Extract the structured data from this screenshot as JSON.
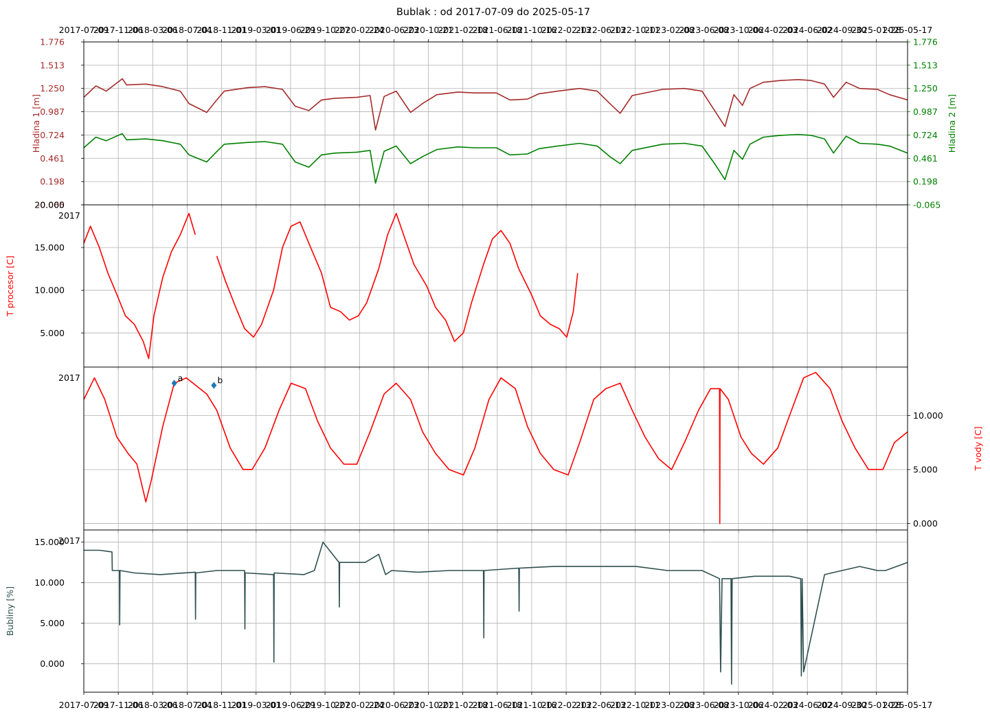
{
  "figure": {
    "title": "Bublak : od 2017-07-09 do 2025-05-17"
  },
  "time_axis": {
    "tick_labels": [
      "2017-07-09",
      "2017-11-06",
      "2018-03-06",
      "2018-07-04",
      "2018-11-01",
      "2019-03-01",
      "2019-06-29",
      "2019-10-27",
      "2020-02-24",
      "2020-06-23",
      "2020-10-21",
      "2021-02-18",
      "2021-06-18",
      "2021-10-16",
      "2022-02-13",
      "2022-06-13",
      "2022-10-11",
      "2023-02-08",
      "2023-06-08",
      "2023-10-06",
      "2024-02-03",
      "2024-06-02",
      "2024-09-30",
      "2025-01-28",
      "2025-05-17"
    ],
    "tick_dates": [
      "2017-07-09",
      "2017-11-06",
      "2018-03-06",
      "2018-07-04",
      "2018-11-01",
      "2019-03-01",
      "2019-06-29",
      "2019-10-27",
      "2020-02-24",
      "2020-06-23",
      "2020-10-21",
      "2021-02-18",
      "2021-06-18",
      "2021-10-16",
      "2022-02-13",
      "2022-06-13",
      "2022-10-11",
      "2023-02-08",
      "2023-06-08",
      "2023-10-06",
      "2024-02-03",
      "2024-06-02",
      "2024-09-30",
      "2025-01-28",
      "2025-05-17"
    ],
    "range": [
      "2017-07-09",
      "2025-05-17"
    ]
  },
  "chart_data": [
    {
      "type": "line",
      "title": "",
      "ylabel": "Hladina 1 [m]",
      "ylabel_right": "Hladina 2 [m]",
      "ylim": [
        -0.065,
        1.776
      ],
      "yticks": [
        "-0.065",
        "0.198",
        "0.461",
        "0.724",
        "0.987",
        "1.250",
        "1.513",
        "1.776"
      ],
      "yticks_right": [
        "-0.065",
        "0.198",
        "0.461",
        "0.724",
        "0.987",
        "1.250",
        "1.513",
        "1.776"
      ],
      "grid": true,
      "series": [
        {
          "color": "#a52a2a",
          "x": [
            "2017-07-09",
            "2017-08-20",
            "2017-09-25",
            "2017-11-20",
            "2017-12-05",
            "2018-02-10",
            "2018-04-10",
            "2018-06-10",
            "2018-07-10",
            "2018-09-10",
            "2018-10-10",
            "2018-11-10",
            "2019-02-01",
            "2019-04-01",
            "2019-06-01",
            "2019-07-15",
            "2019-09-01",
            "2019-10-15",
            "2019-12-01",
            "2020-02-15",
            "2020-04-01",
            "2020-04-20",
            "2020-05-20",
            "2020-07-01",
            "2020-08-20",
            "2020-10-01",
            "2020-11-20",
            "2021-02-01",
            "2021-04-01",
            "2021-06-15",
            "2021-08-01",
            "2021-10-01",
            "2021-11-10",
            "2022-01-15",
            "2022-04-01",
            "2022-06-01",
            "2022-07-15",
            "2022-08-20",
            "2022-10-01",
            "2023-01-15",
            "2023-04-01",
            "2023-06-01",
            "2023-07-15",
            "2023-08-20",
            "2023-09-20",
            "2023-10-20",
            "2023-11-15",
            "2024-01-01",
            "2024-03-01",
            "2024-05-01",
            "2024-06-15",
            "2024-08-01",
            "2024-09-01",
            "2024-10-15",
            "2024-12-01",
            "2025-02-01",
            "2025-03-15",
            "2025-05-17"
          ],
          "y": [
            1.15,
            1.28,
            1.22,
            1.36,
            1.29,
            1.3,
            1.27,
            1.22,
            1.08,
            0.98,
            1.1,
            1.22,
            1.26,
            1.27,
            1.24,
            1.05,
            1.0,
            1.12,
            1.14,
            1.15,
            1.17,
            0.78,
            1.16,
            1.22,
            0.98,
            1.08,
            1.18,
            1.21,
            1.2,
            1.2,
            1.12,
            1.13,
            1.19,
            1.22,
            1.25,
            1.22,
            1.08,
            0.97,
            1.17,
            1.24,
            1.25,
            1.22,
            1.0,
            0.82,
            1.18,
            1.06,
            1.25,
            1.32,
            1.34,
            1.35,
            1.34,
            1.3,
            1.15,
            1.32,
            1.25,
            1.24,
            1.18,
            1.12
          ]
        },
        {
          "color": "#008000",
          "x": [
            "2017-07-09",
            "2017-08-20",
            "2017-09-25",
            "2017-11-20",
            "2017-12-05",
            "2018-02-10",
            "2018-04-10",
            "2018-06-10",
            "2018-07-10",
            "2018-09-10",
            "2018-10-10",
            "2018-11-10",
            "2019-02-01",
            "2019-04-01",
            "2019-06-01",
            "2019-07-15",
            "2019-09-01",
            "2019-10-15",
            "2019-12-01",
            "2020-02-15",
            "2020-04-01",
            "2020-04-20",
            "2020-05-20",
            "2020-07-01",
            "2020-08-20",
            "2020-10-01",
            "2020-11-20",
            "2021-02-01",
            "2021-04-01",
            "2021-06-15",
            "2021-08-01",
            "2021-10-01",
            "2021-11-10",
            "2022-01-15",
            "2022-04-01",
            "2022-06-01",
            "2022-07-15",
            "2022-08-20",
            "2022-10-01",
            "2023-01-15",
            "2023-04-01",
            "2023-06-01",
            "2023-07-15",
            "2023-08-20",
            "2023-09-20",
            "2023-10-20",
            "2023-11-15",
            "2024-01-01",
            "2024-03-01",
            "2024-05-01",
            "2024-06-15",
            "2024-08-01",
            "2024-09-01",
            "2024-10-15",
            "2024-12-01",
            "2025-02-01",
            "2025-03-15",
            "2025-05-17"
          ],
          "y": [
            0.58,
            0.7,
            0.66,
            0.74,
            0.67,
            0.68,
            0.66,
            0.62,
            0.5,
            0.42,
            0.52,
            0.62,
            0.64,
            0.65,
            0.62,
            0.42,
            0.36,
            0.5,
            0.52,
            0.53,
            0.55,
            0.18,
            0.54,
            0.6,
            0.4,
            0.48,
            0.56,
            0.59,
            0.58,
            0.58,
            0.5,
            0.51,
            0.57,
            0.6,
            0.63,
            0.6,
            0.48,
            0.4,
            0.55,
            0.62,
            0.63,
            0.6,
            0.4,
            0.22,
            0.55,
            0.45,
            0.62,
            0.7,
            0.72,
            0.73,
            0.72,
            0.68,
            0.52,
            0.71,
            0.63,
            0.62,
            0.6,
            0.52
          ]
        }
      ]
    },
    {
      "type": "line",
      "title": "",
      "ylabel": "T procesor [C]",
      "corner_label": "2017",
      "ylim": [
        1.0,
        20.0
      ],
      "yticks": [
        "5.000",
        "10.000",
        "15.000",
        "20.000"
      ],
      "grid": true,
      "series": [
        {
          "color": "#ff0000",
          "x": [
            "2017-07-09",
            "2017-08-01",
            "2017-09-01",
            "2017-10-01",
            "2017-11-01",
            "2017-12-01",
            "2018-01-01",
            "2018-02-01",
            "2018-02-20",
            "2018-03-10",
            "2018-04-10",
            "2018-05-10",
            "2018-06-10",
            "2018-07-10",
            "2018-08-01",
            "2018-09-10",
            "2018-10-15",
            "2018-11-15",
            "2018-12-20",
            "2019-01-20",
            "2019-02-20",
            "2019-03-20",
            "2019-05-01",
            "2019-06-01",
            "2019-07-01",
            "2019-08-01",
            "2019-09-01",
            "2019-10-15",
            "2019-11-15",
            "2019-12-20",
            "2020-01-20",
            "2020-02-20",
            "2020-03-20",
            "2020-05-01",
            "2020-06-01",
            "2020-07-01",
            "2020-08-01",
            "2020-09-01",
            "2020-10-15",
            "2020-11-15",
            "2020-12-20",
            "2021-01-20",
            "2021-02-20",
            "2021-03-20",
            "2021-05-01",
            "2021-06-01",
            "2021-07-01",
            "2021-08-01",
            "2021-09-01",
            "2021-10-15",
            "2021-11-15",
            "2021-12-20",
            "2022-01-20",
            "2022-02-15",
            "2022-03-10",
            "2022-03-25"
          ],
          "y": [
            15.5,
            17.5,
            15.0,
            12.0,
            9.5,
            7.0,
            6.0,
            4.0,
            2.0,
            7.0,
            11.5,
            14.5,
            16.5,
            19.0,
            16.5,
            null,
            14.0,
            11.0,
            8.0,
            5.5,
            4.5,
            6.0,
            10.0,
            15.0,
            17.5,
            18.0,
            15.5,
            12.0,
            8.0,
            7.5,
            6.5,
            7.0,
            8.5,
            12.5,
            16.5,
            19.0,
            16.0,
            13.0,
            10.5,
            8.0,
            6.5,
            4.0,
            5.0,
            8.5,
            13.0,
            16.0,
            17.0,
            15.5,
            12.5,
            9.5,
            7.0,
            6.0,
            5.5,
            4.5,
            7.5,
            12.0
          ]
        }
      ]
    },
    {
      "type": "line",
      "title": "",
      "ylabel": "T vody [C]",
      "corner_label": "2017",
      "ylim": [
        -0.6,
        14.5
      ],
      "yticks": [
        "0.000",
        "5.000",
        "10.000"
      ],
      "grid": true,
      "annotations": [
        {
          "label": "a",
          "x": "2018-05-20",
          "y": 13.0
        },
        {
          "label": "b",
          "x": "2018-10-05",
          "y": 12.8
        }
      ],
      "series": [
        {
          "color": "#ff0000",
          "x": [
            "2017-07-09",
            "2017-08-15",
            "2017-09-20",
            "2017-11-01",
            "2017-12-10",
            "2018-01-10",
            "2018-02-10",
            "2018-03-01",
            "2018-04-10",
            "2018-05-20",
            "2018-07-01",
            "2018-09-10",
            "2018-10-15",
            "2018-12-01",
            "2019-01-15",
            "2019-02-15",
            "2019-04-01",
            "2019-05-20",
            "2019-07-01",
            "2019-08-20",
            "2019-10-01",
            "2019-11-15",
            "2020-01-01",
            "2020-02-15",
            "2020-04-01",
            "2020-05-20",
            "2020-07-01",
            "2020-08-20",
            "2020-10-01",
            "2020-11-15",
            "2021-01-01",
            "2021-02-20",
            "2021-04-01",
            "2021-05-20",
            "2021-07-01",
            "2021-08-20",
            "2021-10-01",
            "2021-11-15",
            "2022-01-01",
            "2022-02-20",
            "2022-04-01",
            "2022-05-20",
            "2022-07-01",
            "2022-08-20",
            "2022-10-01",
            "2022-11-15",
            "2023-01-01",
            "2023-02-15",
            "2023-04-01",
            "2023-05-20",
            "2023-07-01",
            "2023-08-01",
            "2023-08-02",
            "2023-08-03",
            "2023-09-01",
            "2023-10-15",
            "2023-11-20",
            "2024-01-01",
            "2024-02-20",
            "2024-04-01",
            "2024-05-20",
            "2024-07-01",
            "2024-08-20",
            "2024-10-01",
            "2024-11-15",
            "2025-01-01",
            "2025-02-20",
            "2025-04-01",
            "2025-05-17"
          ],
          "y": [
            11.5,
            13.5,
            11.5,
            8.0,
            6.5,
            5.5,
            2.0,
            4.0,
            9.0,
            13.0,
            13.5,
            12.0,
            10.5,
            7.0,
            5.0,
            5.0,
            7.0,
            10.5,
            13.0,
            12.5,
            9.5,
            7.0,
            5.5,
            5.5,
            8.5,
            12.0,
            13.0,
            11.5,
            8.5,
            6.5,
            5.0,
            4.5,
            7.0,
            11.5,
            13.5,
            12.5,
            9.0,
            6.5,
            5.0,
            4.5,
            7.5,
            11.5,
            12.5,
            13.0,
            10.5,
            8.0,
            6.0,
            5.0,
            7.5,
            10.5,
            12.5,
            12.5,
            0.0,
            12.5,
            11.5,
            8.0,
            6.5,
            5.5,
            7.0,
            10.0,
            13.5,
            14.0,
            12.5,
            9.5,
            7.0,
            5.0,
            5.0,
            7.5,
            8.5
          ]
        }
      ]
    },
    {
      "type": "line",
      "title": "",
      "ylabel": "Bubliny [%]",
      "corner_label": "2017",
      "ylim": [
        -3.5,
        16.5
      ],
      "yticks": [
        "0.000",
        "5.000",
        "10.000",
        "15.000"
      ],
      "grid": true,
      "series": [
        {
          "color": "#2f4f4f",
          "x": [
            "2017-07-09",
            "2017-09-01",
            "2017-10-15",
            "2017-10-16",
            "2017-11-10",
            "2017-11-11",
            "2017-11-12",
            "2018-01-01",
            "2018-04-01",
            "2018-08-01",
            "2018-08-02",
            "2018-08-03",
            "2018-10-15",
            "2019-01-20",
            "2019-01-21",
            "2019-01-22",
            "2019-05-01",
            "2019-05-02",
            "2019-05-03",
            "2019-08-15",
            "2019-09-20",
            "2019-10-20",
            "2019-12-15",
            "2019-12-16",
            "2019-12-17",
            "2020-03-15",
            "2020-05-01",
            "2020-05-25",
            "2020-06-15",
            "2020-09-15",
            "2021-01-01",
            "2021-05-01",
            "2021-05-02",
            "2021-05-03",
            "2021-09-01",
            "2021-09-02",
            "2021-09-03",
            "2022-01-01",
            "2022-06-01",
            "2022-10-15",
            "2023-02-01",
            "2023-06-01",
            "2023-08-01",
            "2023-08-05",
            "2023-08-10",
            "2023-09-10",
            "2023-09-12",
            "2023-09-14",
            "2023-12-01",
            "2024-04-01",
            "2024-05-10",
            "2024-05-12",
            "2024-05-15",
            "2024-05-20",
            "2024-08-01",
            "2024-10-01",
            "2024-12-01",
            "2025-02-01",
            "2025-03-01",
            "2025-05-17"
          ],
          "y": [
            14.0,
            14.0,
            13.8,
            11.5,
            11.5,
            4.8,
            11.5,
            11.2,
            11.0,
            11.3,
            5.5,
            11.2,
            11.5,
            11.5,
            4.3,
            11.2,
            11.0,
            0.2,
            11.2,
            11.0,
            11.5,
            15.0,
            12.5,
            7.0,
            12.5,
            12.5,
            13.5,
            11.0,
            11.5,
            11.3,
            11.5,
            11.5,
            3.2,
            11.5,
            11.8,
            6.5,
            11.8,
            12.0,
            12.0,
            12.0,
            11.5,
            11.5,
            10.5,
            -1.0,
            10.5,
            10.5,
            -2.5,
            10.5,
            10.8,
            10.8,
            10.5,
            -1.5,
            10.5,
            -1.0,
            11.0,
            11.5,
            12.0,
            11.5,
            11.5,
            12.5
          ]
        }
      ]
    }
  ]
}
